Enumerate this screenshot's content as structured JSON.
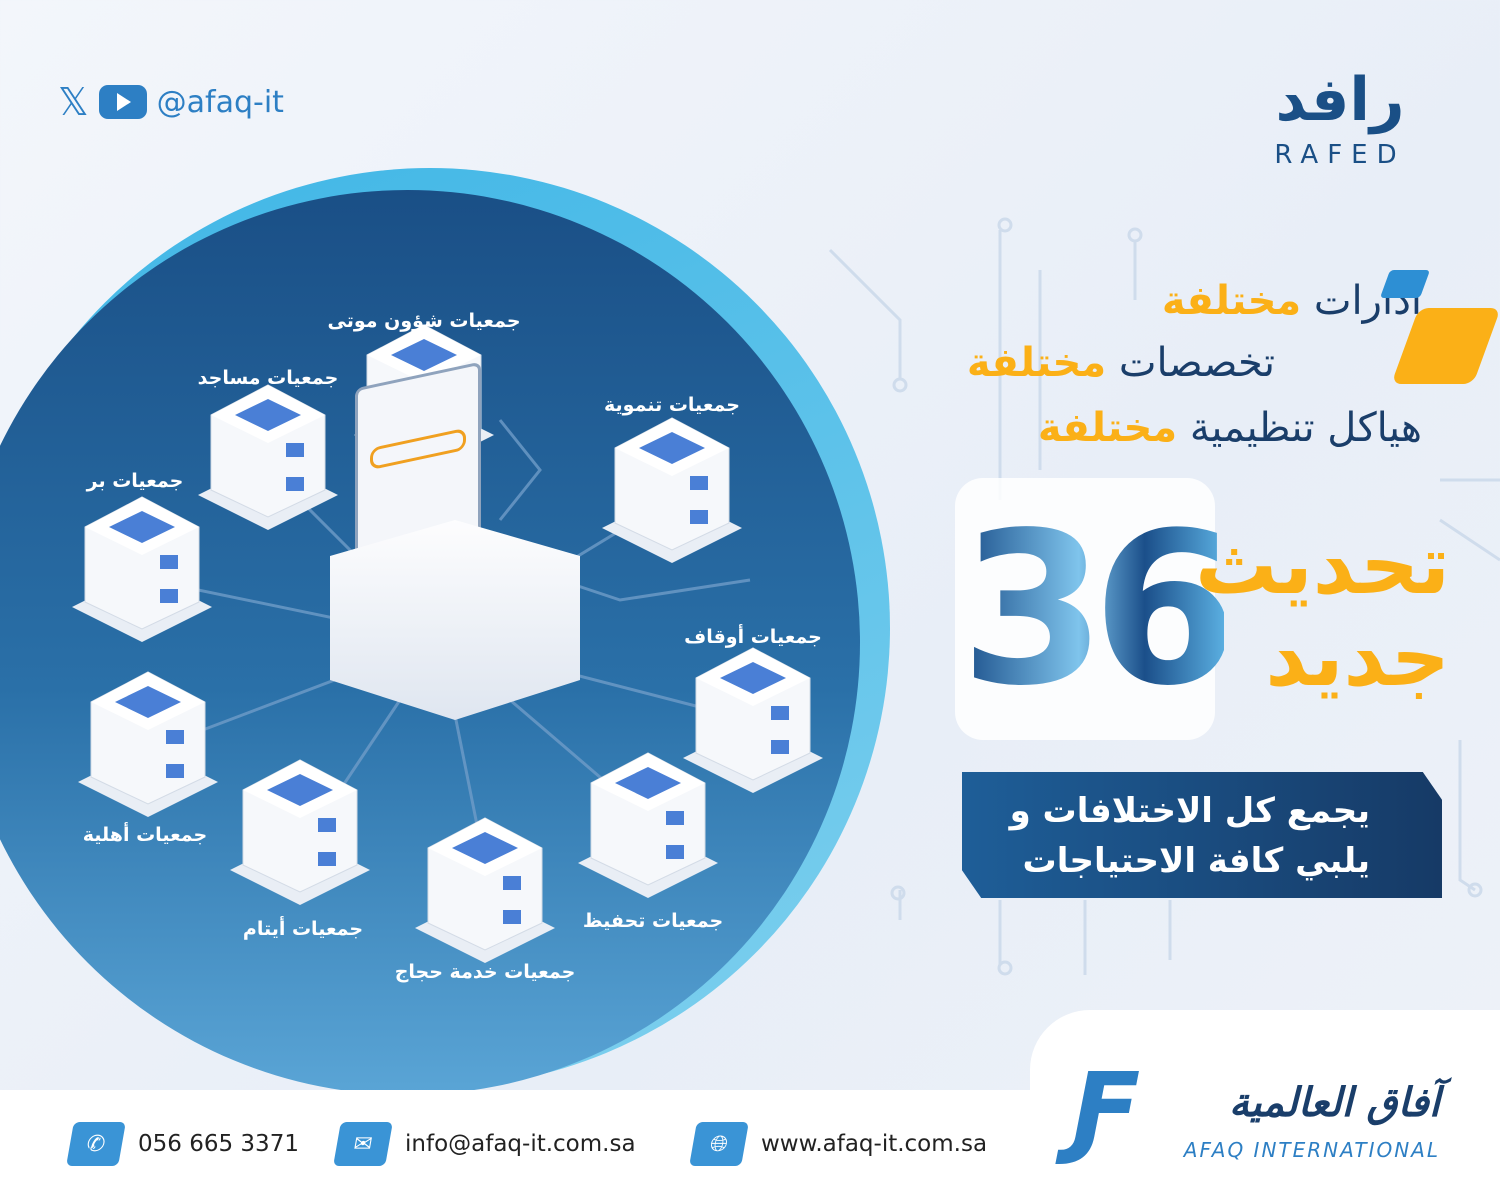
{
  "social": {
    "handle": "@afaq-it",
    "icons": [
      "x-icon",
      "youtube-icon"
    ]
  },
  "logo": {
    "arabic": "رافد",
    "english": "RAFED"
  },
  "headline": {
    "lines": [
      {
        "text": "ادارات",
        "highlight": "مختلفة"
      },
      {
        "text": "تخصصات",
        "highlight": "مختلفة"
      },
      {
        "text": "هياكل تنظيمية",
        "highlight": "مختلفة"
      }
    ]
  },
  "update": {
    "number": "36",
    "line1": "تحديث",
    "line2": "جديد"
  },
  "banner": {
    "line1": "يجمع كل الاختلافات و",
    "line2": "يلبي كافة الاحتياجات"
  },
  "network": {
    "nodes": [
      {
        "label": "جمعيات شؤون موتى"
      },
      {
        "label": "جمعيات مساجد"
      },
      {
        "label": "جمعيات تنموية"
      },
      {
        "label": "جمعيات بر"
      },
      {
        "label": "جمعيات أوقاف"
      },
      {
        "label": "جمعيات أهلية"
      },
      {
        "label": "جمعيات أيتام"
      },
      {
        "label": "جمعيات خدمة حجاج"
      },
      {
        "label": "جمعيات تحفيظ"
      }
    ]
  },
  "contact": {
    "phone": "056 665 3371",
    "email": "info@afaq-it.com.sa",
    "website": "www.afaq-it.com.sa"
  },
  "company": {
    "arabic": "آفاق العالمية",
    "english": "AFAQ INTERNATIONAL"
  },
  "colors": {
    "navy": "#1a4f86",
    "accent": "#fbb017",
    "blue": "#3a94d6"
  }
}
